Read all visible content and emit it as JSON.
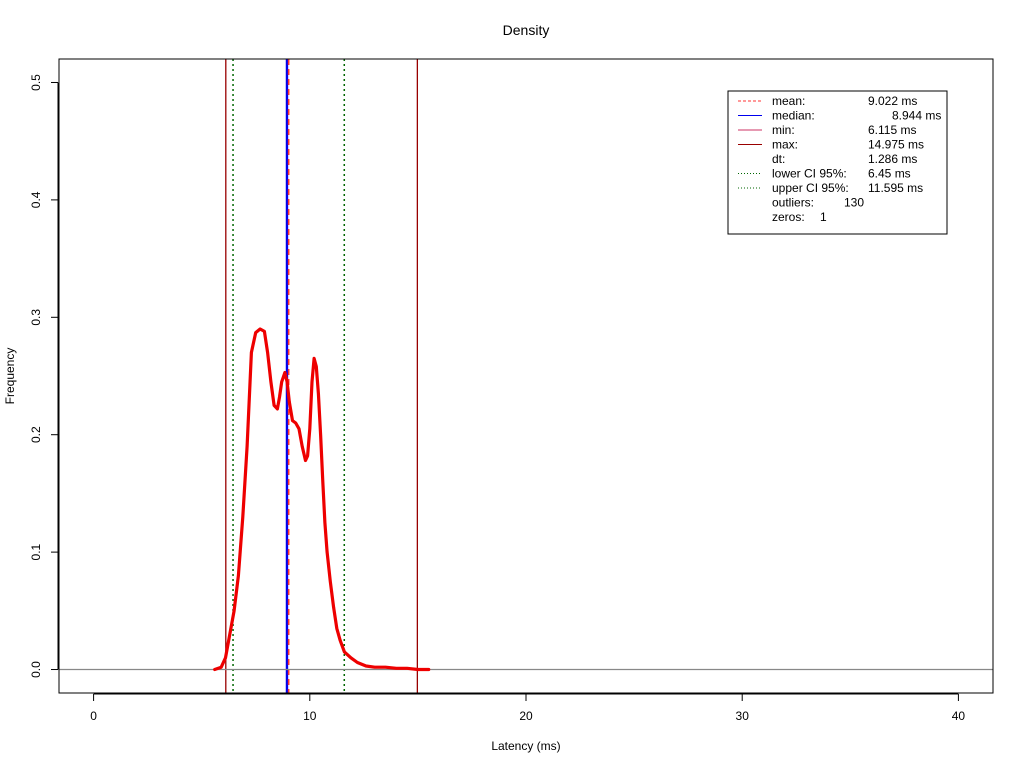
{
  "chart_data": {
    "type": "line",
    "title": "Density",
    "xlabel": "Latency (ms)",
    "ylabel": "Frequency",
    "xlim": [
      -1.6,
      41.6
    ],
    "ylim": [
      -0.02,
      0.52
    ],
    "x_ticks": [
      0,
      10,
      20,
      30,
      40
    ],
    "x_tick_labels": [
      "0",
      "10",
      "20",
      "30",
      "40"
    ],
    "y_ticks": [
      0.0,
      0.1,
      0.2,
      0.3,
      0.4,
      0.5
    ],
    "y_tick_labels": [
      "0.0",
      "0.1",
      "0.2",
      "0.3",
      "0.4",
      "0.5"
    ],
    "grid": false,
    "legend_placement": "top-right",
    "baseline": 0,
    "series": [
      {
        "color": "#ee0000",
        "x": [
          5.6,
          5.9,
          6.1,
          6.3,
          6.5,
          6.7,
          6.9,
          7.1,
          7.3,
          7.5,
          7.7,
          7.9,
          8.05,
          8.2,
          8.35,
          8.5,
          8.6,
          8.7,
          8.85,
          8.95,
          9.05,
          9.2,
          9.35,
          9.5,
          9.65,
          9.8,
          9.9,
          10.0,
          10.1,
          10.2,
          10.3,
          10.4,
          10.5,
          10.6,
          10.7,
          10.8,
          10.95,
          11.1,
          11.25,
          11.4,
          11.6,
          11.9,
          12.2,
          12.6,
          13.0,
          13.5,
          14.0,
          14.5,
          15.0,
          15.5
        ],
        "y": [
          0.0,
          0.002,
          0.01,
          0.03,
          0.05,
          0.08,
          0.13,
          0.19,
          0.27,
          0.287,
          0.29,
          0.288,
          0.27,
          0.245,
          0.225,
          0.222,
          0.232,
          0.245,
          0.253,
          0.245,
          0.228,
          0.212,
          0.21,
          0.205,
          0.19,
          0.178,
          0.182,
          0.205,
          0.245,
          0.265,
          0.258,
          0.235,
          0.2,
          0.16,
          0.125,
          0.1,
          0.075,
          0.053,
          0.035,
          0.025,
          0.015,
          0.01,
          0.006,
          0.003,
          0.002,
          0.002,
          0.001,
          0.001,
          0.0,
          0.0
        ]
      }
    ],
    "vlines": [
      {
        "x": 6.115,
        "color": "#990000",
        "dash": "solid",
        "width": 1.3
      },
      {
        "x": 14.975,
        "color": "#990000",
        "dash": "solid",
        "width": 1.3
      },
      {
        "x": 6.45,
        "color": "#006600",
        "dash": "dotted",
        "width": 1.5
      },
      {
        "x": 11.595,
        "color": "#006600",
        "dash": "dotted",
        "width": 1.5
      },
      {
        "x": 8.944,
        "color": "#0000ee",
        "dash": "solid",
        "width": 2.4
      },
      {
        "x": 9.022,
        "color": "#ff3333",
        "dash": "dashed",
        "width": 1.6
      }
    ],
    "legend": [
      {
        "label": "mean:",
        "value": "9.022 ms",
        "color": "#ff3333",
        "dash": "dashed"
      },
      {
        "label": "median:",
        "value": "8.944 ms",
        "color": "#0000ee",
        "dash": "solid"
      },
      {
        "label": "min:",
        "value": "6.115 ms",
        "color": "#cc3366",
        "dash": "solid"
      },
      {
        "label": "max:",
        "value": "14.975 ms",
        "color": "#990000",
        "dash": "solid"
      },
      {
        "label": "dt:",
        "value": "1.286 ms",
        "color": "",
        "dash": "none"
      },
      {
        "label": "lower CI 95%:",
        "value": "6.45 ms",
        "color": "#006600",
        "dash": "dotted"
      },
      {
        "label": "upper CI 95%:",
        "value": "11.595 ms",
        "color": "#006600",
        "dash": "dotted"
      },
      {
        "label": "outliers:",
        "value": "130",
        "color": "",
        "dash": "none"
      },
      {
        "label": "zeros:",
        "value": "1",
        "color": "",
        "dash": "none"
      }
    ]
  }
}
